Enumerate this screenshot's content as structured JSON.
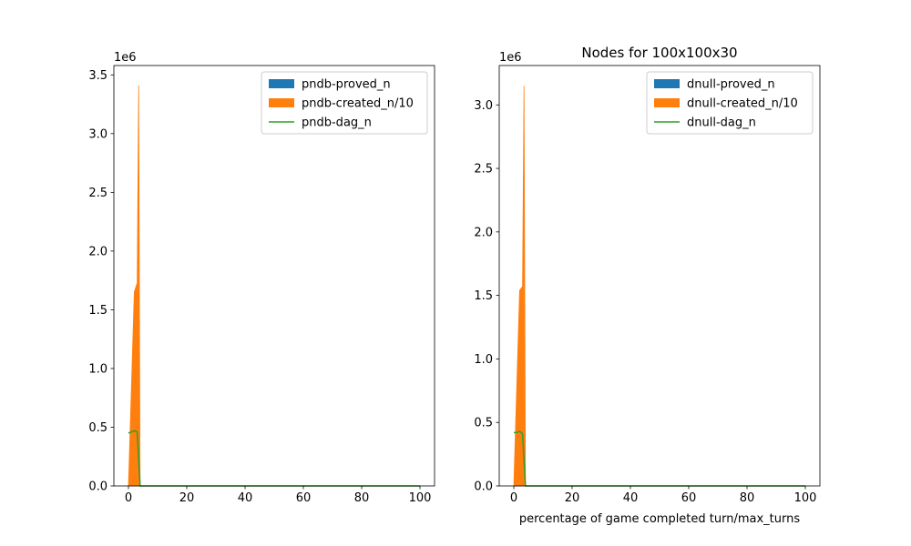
{
  "chart_data": [
    {
      "type": "area",
      "title": "",
      "xlabel": "",
      "ylabel": "",
      "offset_label": "1e6",
      "xlim": [
        -5,
        105
      ],
      "ylim": [
        0,
        3.58
      ],
      "xticks": [
        0,
        20,
        40,
        60,
        80,
        100
      ],
      "yticks": [
        0.0,
        0.5,
        1.0,
        1.5,
        2.0,
        2.5,
        3.0,
        3.5
      ],
      "legend_position": "top-right",
      "series": [
        {
          "name": "pndb-proved_n",
          "kind": "fill",
          "color": "#1f77b4",
          "x": [
            0,
            100
          ],
          "y": [
            0,
            0
          ]
        },
        {
          "name": "pndb-created_n/10",
          "kind": "fill",
          "color": "#ff7f0e",
          "x": [
            0,
            2,
            3,
            3.5,
            4,
            100
          ],
          "y": [
            0,
            1.65,
            1.73,
            3.41,
            0,
            0
          ]
        },
        {
          "name": "pndb-dag_n",
          "kind": "line",
          "color": "#2ca02c",
          "x": [
            0,
            1,
            2,
            3,
            4,
            100
          ],
          "y": [
            0.45,
            0.46,
            0.47,
            0.46,
            0,
            0
          ]
        }
      ]
    },
    {
      "type": "area",
      "title": "Nodes for 100x100x30",
      "xlabel": "percentage of game completed turn/max_turns",
      "ylabel": "",
      "offset_label": "1e6",
      "xlim": [
        -5,
        105
      ],
      "ylim": [
        0,
        3.31
      ],
      "xticks": [
        0,
        20,
        40,
        60,
        80,
        100
      ],
      "yticks": [
        0.0,
        0.5,
        1.0,
        1.5,
        2.0,
        2.5,
        3.0
      ],
      "legend_position": "top-right",
      "series": [
        {
          "name": "dnull-proved_n",
          "kind": "fill",
          "color": "#1f77b4",
          "x": [
            0,
            100
          ],
          "y": [
            0,
            0
          ]
        },
        {
          "name": "dnull-created_n/10",
          "kind": "fill",
          "color": "#ff7f0e",
          "x": [
            0,
            2,
            3,
            3.5,
            4,
            100
          ],
          "y": [
            0,
            1.54,
            1.57,
            3.15,
            0,
            0
          ]
        },
        {
          "name": "dnull-dag_n",
          "kind": "line",
          "color": "#2ca02c",
          "x": [
            0,
            1,
            2,
            3,
            4,
            100
          ],
          "y": [
            0.42,
            0.42,
            0.43,
            0.41,
            0,
            0
          ]
        }
      ]
    }
  ]
}
